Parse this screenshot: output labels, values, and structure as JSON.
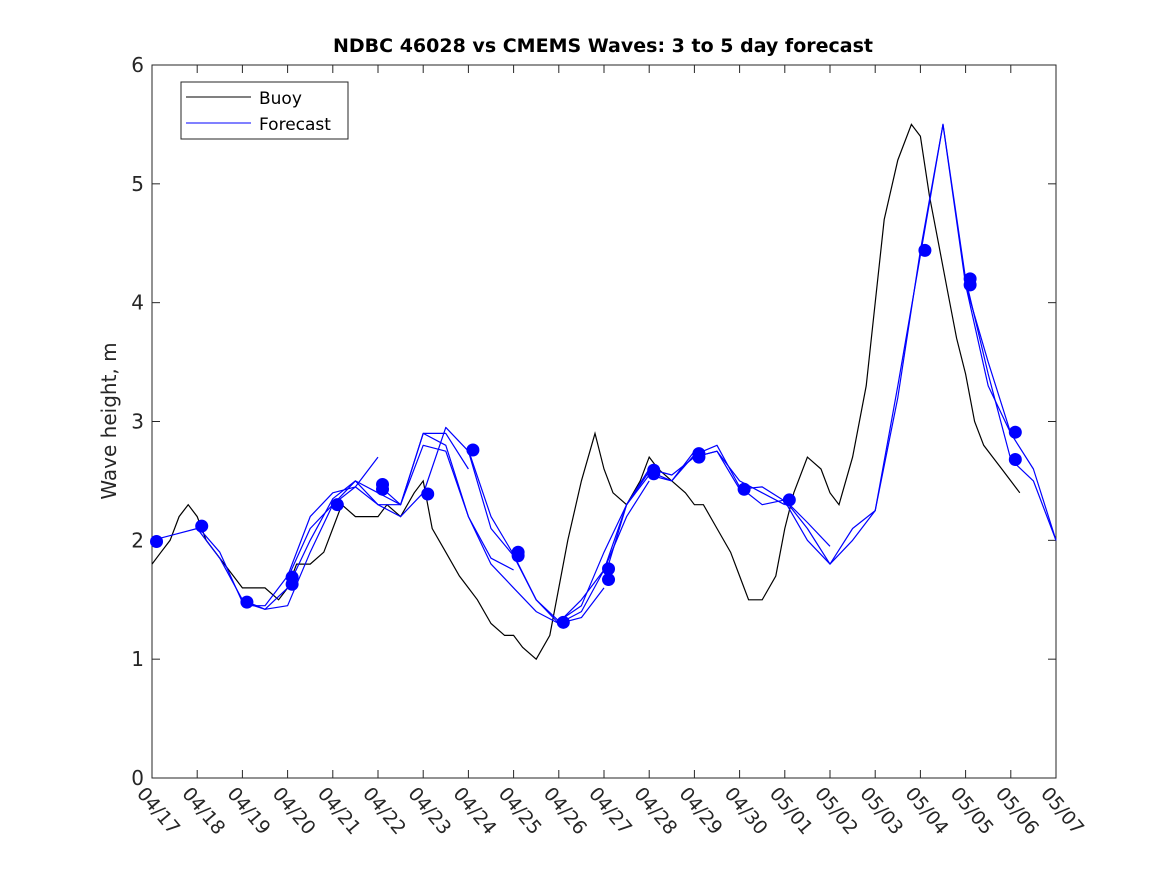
{
  "chart_data": {
    "type": "line",
    "title": "NDBC 46028 vs CMEMS Waves: 3 to 5 day forecast",
    "xlabel": "",
    "ylabel": "Wave height, m",
    "xlim": [
      0,
      20
    ],
    "ylim": [
      0,
      6
    ],
    "x_tick_labels": [
      "04/17",
      "04/18",
      "04/19",
      "04/20",
      "04/21",
      "04/22",
      "04/23",
      "04/24",
      "04/25",
      "04/26",
      "04/27",
      "04/28",
      "04/29",
      "04/30",
      "05/01",
      "05/02",
      "05/03",
      "05/04",
      "05/05",
      "05/06",
      "05/07"
    ],
    "y_ticks": [
      0,
      1,
      2,
      3,
      4,
      5,
      6
    ],
    "grid": false,
    "legend": {
      "placement": "top-left",
      "entries": [
        "Buoy",
        "Forecast"
      ]
    },
    "colors": {
      "buoy": "#000000",
      "forecast": "#0000ff"
    },
    "series": [
      {
        "name": "Buoy",
        "x": [
          0,
          0.2,
          0.4,
          0.6,
          0.8,
          1.0,
          1.2,
          1.4,
          1.6,
          1.8,
          2.0,
          2.2,
          2.5,
          2.8,
          3.0,
          3.2,
          3.5,
          3.8,
          4.0,
          4.2,
          4.5,
          4.8,
          5.0,
          5.2,
          5.5,
          5.8,
          6.0,
          6.2,
          6.5,
          6.8,
          7.0,
          7.2,
          7.5,
          7.8,
          8.0,
          8.2,
          8.5,
          8.8,
          9.0,
          9.2,
          9.5,
          9.8,
          10.0,
          10.2,
          10.5,
          10.8,
          11.0,
          11.2,
          11.5,
          11.8,
          12.0,
          12.2,
          12.5,
          12.8,
          13.0,
          13.2,
          13.5,
          13.8,
          14.0,
          14.2,
          14.5,
          14.8,
          15.0,
          15.2,
          15.5,
          15.8,
          16.0,
          16.2,
          16.5,
          16.8,
          17.0,
          17.2,
          17.4,
          17.6,
          17.8,
          18.0,
          18.2,
          18.4,
          18.6,
          18.8,
          19.0,
          19.2
        ],
        "values": [
          1.8,
          1.9,
          2.0,
          2.2,
          2.3,
          2.2,
          2.0,
          1.9,
          1.8,
          1.7,
          1.6,
          1.6,
          1.6,
          1.5,
          1.6,
          1.8,
          1.8,
          1.9,
          2.1,
          2.3,
          2.2,
          2.2,
          2.2,
          2.3,
          2.2,
          2.4,
          2.5,
          2.1,
          1.9,
          1.7,
          1.6,
          1.5,
          1.3,
          1.2,
          1.2,
          1.1,
          1.0,
          1.2,
          1.6,
          2.0,
          2.5,
          2.9,
          2.6,
          2.4,
          2.3,
          2.5,
          2.7,
          2.6,
          2.5,
          2.4,
          2.3,
          2.3,
          2.1,
          1.9,
          1.7,
          1.5,
          1.5,
          1.7,
          2.1,
          2.4,
          2.7,
          2.6,
          2.4,
          2.3,
          2.7,
          3.3,
          4.0,
          4.7,
          5.2,
          5.5,
          5.4,
          4.9,
          4.5,
          4.1,
          3.7,
          3.4,
          3.0,
          2.8,
          2.7,
          2.6,
          2.5,
          2.4
        ]
      },
      {
        "name": "Forecast",
        "segments": [
          {
            "x": [
              0,
              0.5,
              1.0,
              1.5,
              2.0,
              2.5,
              3.0,
              3.5,
              4.0,
              4.5,
              5.0
            ],
            "values": [
              2.0,
              2.05,
              2.1,
              1.85,
              1.5,
              1.42,
              1.45,
              1.9,
              2.3,
              2.45,
              2.7
            ]
          },
          {
            "x": [
              1.0,
              1.5,
              2.0,
              2.5,
              3.0,
              3.5,
              4.0,
              4.5,
              5.0,
              5.5,
              6.0
            ],
            "values": [
              2.12,
              1.9,
              1.48,
              1.42,
              1.6,
              2.0,
              2.35,
              2.5,
              2.3,
              2.2,
              2.4
            ]
          },
          {
            "x": [
              2.0,
              2.5,
              3.0,
              3.5,
              4.0,
              4.5,
              5.0,
              5.5,
              6.0,
              6.5,
              7.0
            ],
            "values": [
              1.45,
              1.45,
              1.7,
              2.2,
              2.4,
              2.45,
              2.3,
              2.3,
              2.9,
              2.9,
              2.6
            ]
          },
          {
            "x": [
              3.0,
              3.5,
              4.0,
              4.5,
              5.0,
              5.5,
              6.0,
              6.5,
              7.0,
              7.5,
              8.0
            ],
            "values": [
              1.68,
              2.1,
              2.3,
              2.5,
              2.4,
              2.3,
              2.8,
              2.75,
              2.2,
              1.85,
              1.75
            ]
          },
          {
            "x": [
              5.0,
              5.5,
              6.0,
              6.5,
              7.0,
              7.5,
              8.0,
              8.5,
              9.0,
              9.5,
              10.0
            ],
            "values": [
              2.47,
              2.3,
              2.9,
              2.8,
              2.2,
              1.8,
              1.6,
              1.4,
              1.3,
              1.35,
              1.6
            ]
          },
          {
            "x": [
              6.0,
              6.5,
              7.0,
              7.5,
              8.0,
              8.5,
              9.0,
              9.5,
              10.0,
              10.5,
              11.0
            ],
            "values": [
              2.39,
              2.95,
              2.75,
              2.1,
              1.87,
              1.5,
              1.3,
              1.4,
              1.75,
              2.2,
              2.5
            ]
          },
          {
            "x": [
              7.0,
              7.5,
              8.0,
              8.5,
              9.0,
              9.5,
              10.0,
              10.5,
              11.0,
              11.5,
              12.0
            ],
            "values": [
              2.76,
              2.2,
              1.88,
              1.5,
              1.32,
              1.45,
              1.9,
              2.3,
              2.58,
              2.5,
              2.75
            ]
          },
          {
            "x": [
              9.0,
              9.5,
              10.0,
              10.5,
              11.0,
              11.5,
              12.0,
              12.5,
              13.0,
              13.5,
              14.0
            ],
            "values": [
              1.31,
              1.5,
              1.75,
              2.3,
              2.6,
              2.55,
              2.7,
              2.75,
              2.5,
              2.4,
              2.3
            ]
          },
          {
            "x": [
              10.0,
              10.5,
              11.0,
              11.5,
              12.0,
              12.5,
              13.0,
              13.5,
              14.0,
              14.5,
              15.0
            ],
            "values": [
              1.67,
              2.3,
              2.55,
              2.5,
              2.72,
              2.8,
              2.45,
              2.3,
              2.34,
              2.15,
              1.95
            ]
          },
          {
            "x": [
              12.0,
              12.5,
              13.0,
              13.5,
              14.0,
              14.5,
              15.0,
              15.5,
              16.0,
              16.5,
              17.0
            ],
            "values": [
              2.7,
              2.75,
              2.43,
              2.45,
              2.33,
              2.0,
              1.8,
              2.0,
              2.25,
              3.2,
              4.44
            ]
          },
          {
            "x": [
              14.0,
              14.5,
              15.0,
              15.5,
              16.0,
              16.5,
              17.0,
              17.5,
              18.0,
              18.5,
              19.0
            ],
            "values": [
              2.34,
              2.1,
              1.8,
              2.1,
              2.25,
              3.3,
              4.4,
              5.5,
              4.15,
              3.5,
              2.9
            ]
          },
          {
            "x": [
              17.0,
              17.5,
              18.0,
              18.5,
              19.0,
              19.5,
              20.0
            ],
            "values": [
              4.44,
              5.5,
              4.2,
              3.4,
              2.68,
              2.5,
              2.0
            ]
          },
          {
            "x": [
              18.0,
              18.5,
              19.0,
              19.5,
              20.0
            ],
            "values": [
              4.15,
              3.3,
              2.9,
              2.6,
              2.0
            ]
          }
        ],
        "markers": {
          "x": [
            0.1,
            1.1,
            2.1,
            3.1,
            3.1,
            4.1,
            5.1,
            5.1,
            6.1,
            7.1,
            8.1,
            8.1,
            9.1,
            10.1,
            10.1,
            11.1,
            11.1,
            12.1,
            12.1,
            13.1,
            14.1,
            17.1,
            18.1,
            18.1,
            19.1,
            19.1
          ],
          "values": [
            1.99,
            2.12,
            1.48,
            1.69,
            1.63,
            2.3,
            2.47,
            2.43,
            2.39,
            2.76,
            1.9,
            1.87,
            1.31,
            1.76,
            1.67,
            2.59,
            2.56,
            2.73,
            2.7,
            2.43,
            2.34,
            4.44,
            4.2,
            4.15,
            2.91,
            2.68
          ]
        }
      }
    ]
  }
}
